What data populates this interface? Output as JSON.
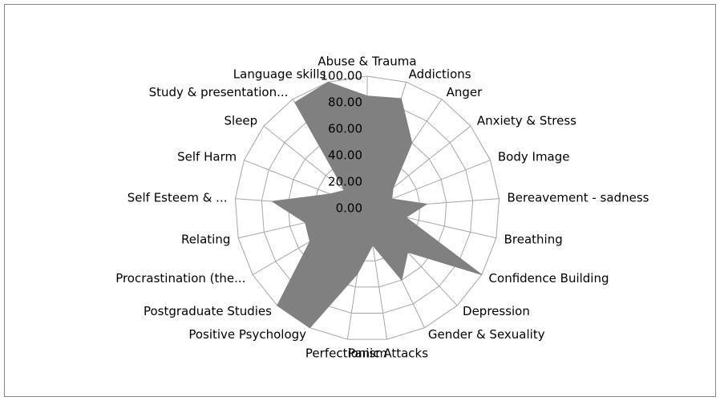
{
  "chart_data": {
    "type": "radar",
    "categories": [
      "Abuse & Trauma",
      "Addictions",
      "Anger",
      "Anxiety & Stress",
      "Body Image",
      "Bereavement - sadness",
      "Breathing",
      "Confidence Building",
      "Depression",
      "Gender & Sexuality",
      "Panic Attacks",
      "Perfectionism",
      "Positive Psychology",
      "Postgraduate Studies",
      "Procrastination (the...",
      "Relating",
      "Self Esteem & ...",
      "Self Harm",
      "Sleep",
      "Study & presentation...",
      "Language skills"
    ],
    "values": [
      85,
      87,
      60,
      25,
      20,
      45,
      30,
      100,
      45,
      60,
      28,
      50,
      100,
      100,
      50,
      48,
      72,
      30,
      22,
      97,
      100
    ],
    "color": "#808080",
    "ylim": [
      0,
      100
    ],
    "yticks": [
      {
        "value": 0,
        "label": "0.00"
      },
      {
        "value": 20,
        "label": "20.00"
      },
      {
        "value": 40,
        "label": "40.00"
      },
      {
        "value": 60,
        "label": "60.00"
      },
      {
        "value": 80,
        "label": "80.00"
      },
      {
        "value": 100,
        "label": "100.00"
      }
    ],
    "grid": true
  }
}
